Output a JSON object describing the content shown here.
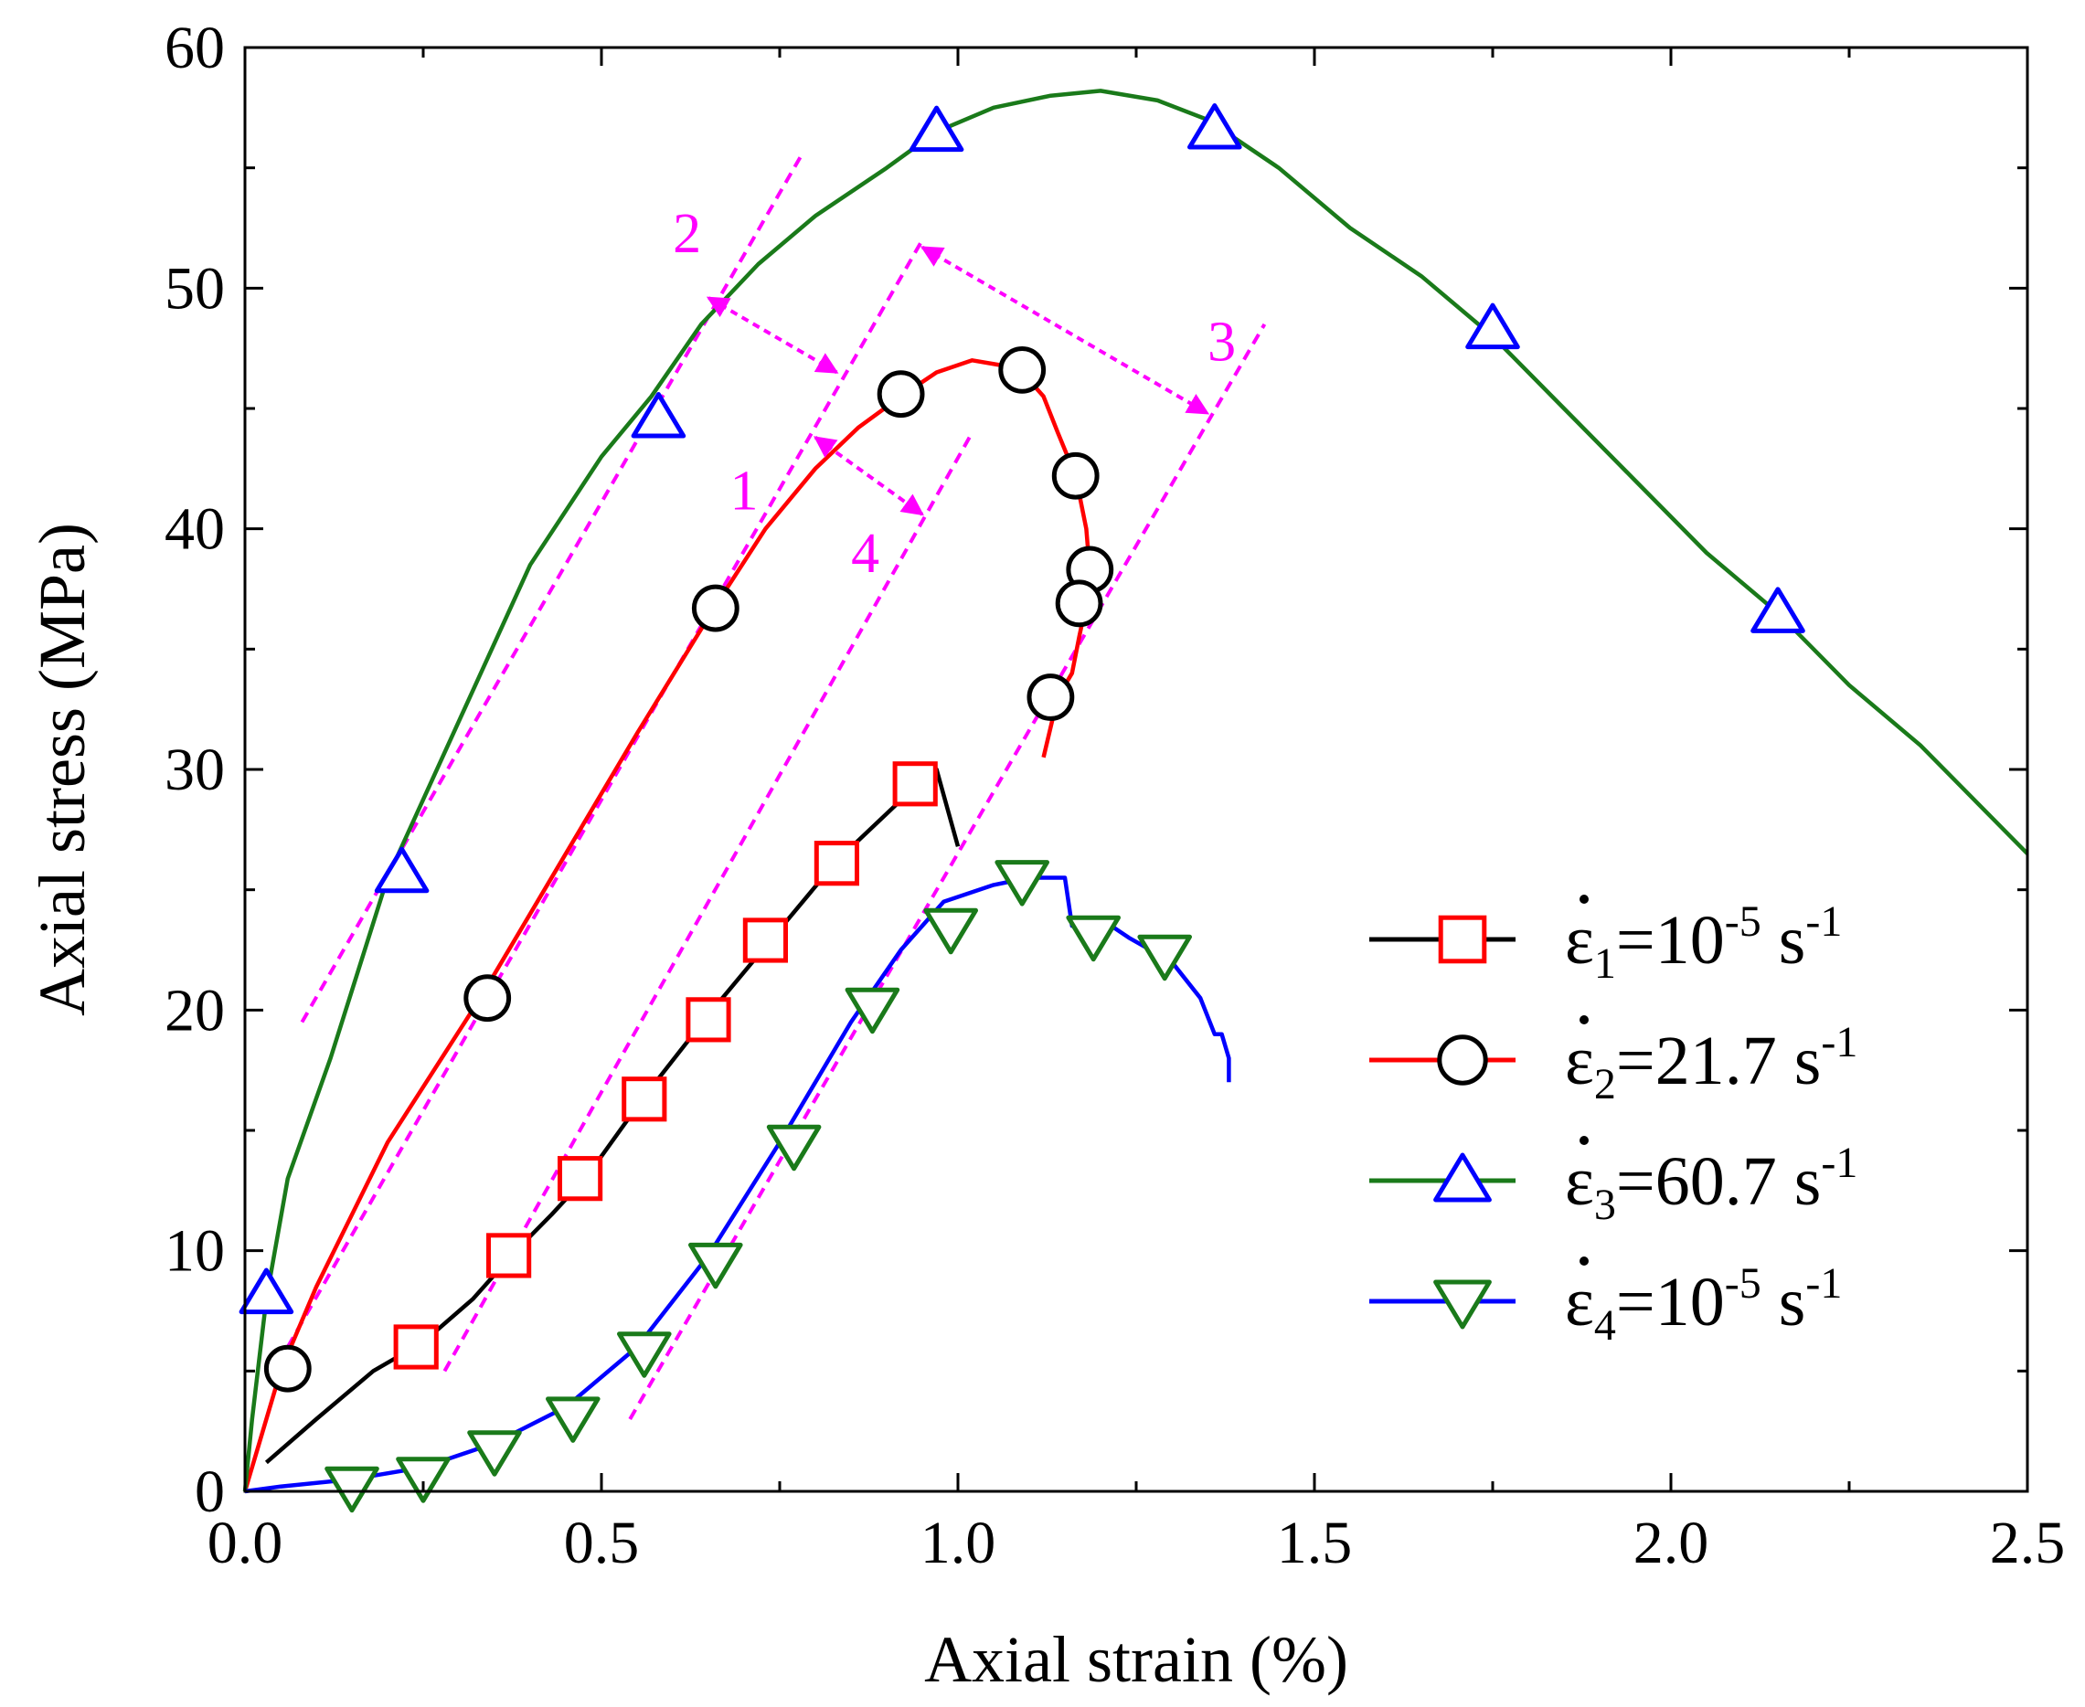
{
  "chart_data": {
    "type": "line",
    "xlabel": "Axial strain (%)",
    "ylabel": "Axial stress (MPa)",
    "xlim": [
      0,
      2.5
    ],
    "ylim": [
      0,
      60
    ],
    "xticks": [
      "0.0",
      "0.5",
      "1.0",
      "1.5",
      "2.0",
      "2.5"
    ],
    "yticks": [
      "0",
      "10",
      "20",
      "30",
      "40",
      "50",
      "60"
    ],
    "legend_position": "right",
    "colors": {
      "black": "#000000",
      "red": "#ff0000",
      "green": "#1a7a1a",
      "blue": "#0000ff",
      "magenta": "#ff00ff"
    },
    "series": [
      {
        "name": "ε1=10-5 s-1",
        "legend": {
          "eps": "ε",
          "sub": "1",
          "pre": "=10",
          "sup": "-5",
          "unit": " s",
          "unit_sup": "-1"
        },
        "line_color": "#000000",
        "marker": "square",
        "marker_color": "#ff0000",
        "x": [
          0.03,
          0.1,
          0.18,
          0.25,
          0.32,
          0.38,
          0.43,
          0.48,
          0.56,
          0.65,
          0.74,
          0.83,
          0.93,
          0.97,
          1.0
        ],
        "y": [
          1.2,
          3.0,
          5.0,
          6.2,
          8.0,
          10.0,
          11.5,
          13.1,
          16.4,
          19.8,
          23.0,
          26.2,
          29.0,
          30.0,
          26.8
        ],
        "marker_x": [
          0.24,
          0.37,
          0.47,
          0.56,
          0.65,
          0.73,
          0.83,
          0.94
        ],
        "marker_y": [
          6.0,
          9.8,
          13.0,
          16.3,
          19.6,
          22.9,
          26.1,
          29.4
        ]
      },
      {
        "name": "ε2=21.7 s-1",
        "legend": {
          "eps": "ε",
          "sub": "2",
          "pre": "=21.7",
          "sup": "",
          "unit": " s",
          "unit_sup": "-1"
        },
        "line_color": "#ff0000",
        "marker": "circle",
        "marker_color": "#000000",
        "x": [
          0.0,
          0.02,
          0.05,
          0.1,
          0.2,
          0.33,
          0.45,
          0.55,
          0.66,
          0.73,
          0.8,
          0.86,
          0.92,
          0.97,
          1.02,
          1.06,
          1.09,
          1.12,
          1.14,
          1.165,
          1.18,
          1.185,
          1.18,
          1.17,
          1.16,
          1.14,
          1.12
        ],
        "y": [
          0.0,
          2.0,
          5.0,
          8.5,
          14.5,
          20.5,
          26.5,
          31.5,
          36.8,
          40.0,
          42.5,
          44.2,
          45.5,
          46.5,
          47.0,
          46.8,
          46.5,
          45.5,
          44.0,
          42.2,
          40.0,
          38.2,
          36.9,
          35.5,
          34.0,
          33.0,
          30.5
        ],
        "marker_x": [
          0.06,
          0.34,
          0.66,
          0.92,
          1.09,
          1.165,
          1.185,
          1.17,
          1.13
        ],
        "marker_y": [
          5.1,
          20.5,
          36.7,
          45.6,
          46.6,
          42.2,
          38.3,
          36.9,
          33.0
        ]
      },
      {
        "name": "ε3=60.7 s-1",
        "legend": {
          "eps": "ε",
          "sub": "3",
          "pre": "=60.7",
          "sup": "",
          "unit": " s",
          "unit_sup": "-1"
        },
        "line_color": "#1a7a1a",
        "marker": "triangle-up",
        "marker_color": "#0000ff",
        "x": [
          0.0,
          0.01,
          0.03,
          0.06,
          0.12,
          0.2,
          0.3,
          0.4,
          0.5,
          0.57,
          0.64,
          0.72,
          0.8,
          0.9,
          0.97,
          1.05,
          1.13,
          1.2,
          1.28,
          1.35,
          1.45,
          1.55,
          1.65,
          1.75,
          1.85,
          1.95,
          2.05,
          2.15,
          2.25,
          2.35,
          2.45,
          2.5
        ],
        "y": [
          0.0,
          3.0,
          8.0,
          13.0,
          18.0,
          25.5,
          32.0,
          38.5,
          43.0,
          45.5,
          48.5,
          51.0,
          53.0,
          55.0,
          56.5,
          57.5,
          58.0,
          58.2,
          57.8,
          57.0,
          55.0,
          52.5,
          50.5,
          48.0,
          45.0,
          42.0,
          39.0,
          36.5,
          33.5,
          31.0,
          28.0,
          26.5
        ],
        "marker_x": [
          0.03,
          0.22,
          0.58,
          0.97,
          1.36,
          1.75,
          2.15
        ],
        "marker_y": [
          8.2,
          25.7,
          44.6,
          56.5,
          56.6,
          48.3,
          36.5
        ]
      },
      {
        "name": "ε4=10-5 s-1",
        "legend": {
          "eps": "ε",
          "sub": "4",
          "pre": "=10",
          "sup": "-5",
          "unit": " s",
          "unit_sup": "-1"
        },
        "line_color": "#0000ff",
        "marker": "triangle-down",
        "marker_color": "#1a7a1a",
        "x": [
          0.0,
          0.05,
          0.15,
          0.25,
          0.35,
          0.45,
          0.55,
          0.65,
          0.75,
          0.85,
          0.92,
          0.98,
          1.05,
          1.1,
          1.15,
          1.16,
          1.2,
          1.24,
          1.3,
          1.34,
          1.36,
          1.37,
          1.38,
          1.38
        ],
        "y": [
          0.0,
          0.2,
          0.5,
          1.0,
          2.0,
          3.5,
          6.0,
          9.8,
          14.5,
          19.5,
          22.5,
          24.5,
          25.2,
          25.5,
          25.5,
          23.5,
          23.8,
          23.0,
          22.0,
          20.5,
          19.0,
          19.0,
          18.0,
          17.0
        ],
        "marker_x": [
          0.15,
          0.25,
          0.35,
          0.46,
          0.56,
          0.66,
          0.77,
          0.88,
          0.99,
          1.09,
          1.19,
          1.29
        ],
        "marker_y": [
          0.2,
          0.6,
          1.7,
          3.1,
          5.8,
          9.5,
          14.4,
          20.1,
          23.4,
          25.4,
          23.1,
          22.3
        ]
      }
    ],
    "annotations": {
      "guide_lines": [
        {
          "x1": 0.08,
          "y1": 19.5,
          "x2": 0.78,
          "y2": 55.5
        },
        {
          "x1": 0.06,
          "y1": 6.0,
          "x2": 0.95,
          "y2": 52.0
        },
        {
          "x1": 0.28,
          "y1": 5.0,
          "x2": 1.02,
          "y2": 44.0
        },
        {
          "x1": 0.54,
          "y1": 3.0,
          "x2": 1.43,
          "y2": 48.5
        }
      ],
      "arrows": [
        {
          "x1": 0.83,
          "y1": 46.5,
          "x2": 0.65,
          "y2": 49.6
        },
        {
          "x1": 0.8,
          "y1": 43.8,
          "x2": 0.95,
          "y2": 40.6
        },
        {
          "x1": 0.95,
          "y1": 51.7,
          "x2": 1.35,
          "y2": 44.8
        }
      ],
      "labels": [
        {
          "text": "2",
          "x": 0.62,
          "y": 51.5
        },
        {
          "text": "1",
          "x": 0.7,
          "y": 40.8
        },
        {
          "text": "4",
          "x": 0.87,
          "y": 38.2
        },
        {
          "text": "3",
          "x": 1.37,
          "y": 47.0
        }
      ]
    }
  }
}
